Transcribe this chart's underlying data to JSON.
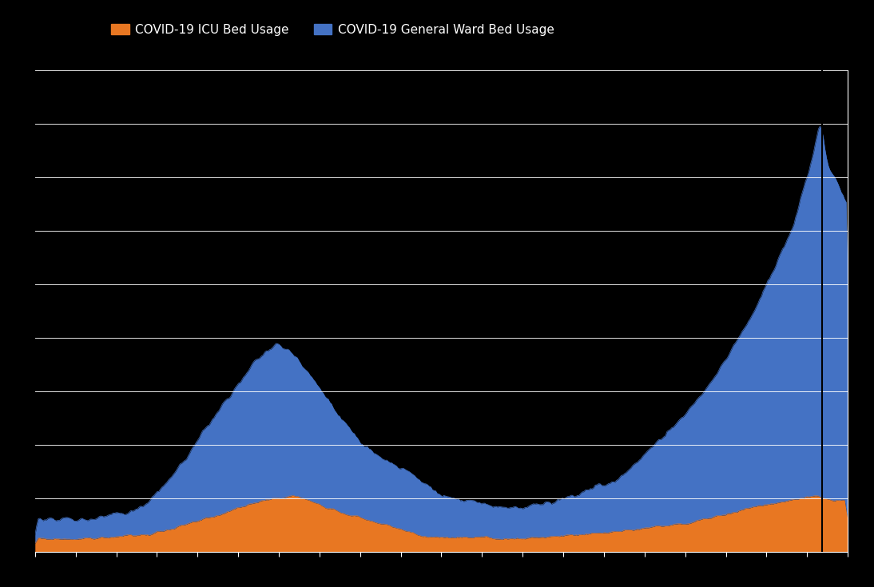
{
  "background_color": "#000000",
  "plot_bg_color": "#000000",
  "icu_color": "#E87722",
  "ward_color": "#4472C4",
  "legend_icu_label": "COVID-19 ICU Bed Usage",
  "legend_ward_label": "COVID-19 General Ward Bed Usage",
  "grid_color": "#ffffff",
  "axis_color": "#ffffff",
  "tick_color": "#ffffff",
  "n_points": 500,
  "ylim": [
    0,
    1000
  ],
  "n_xticks": 21,
  "n_yticks": 10
}
